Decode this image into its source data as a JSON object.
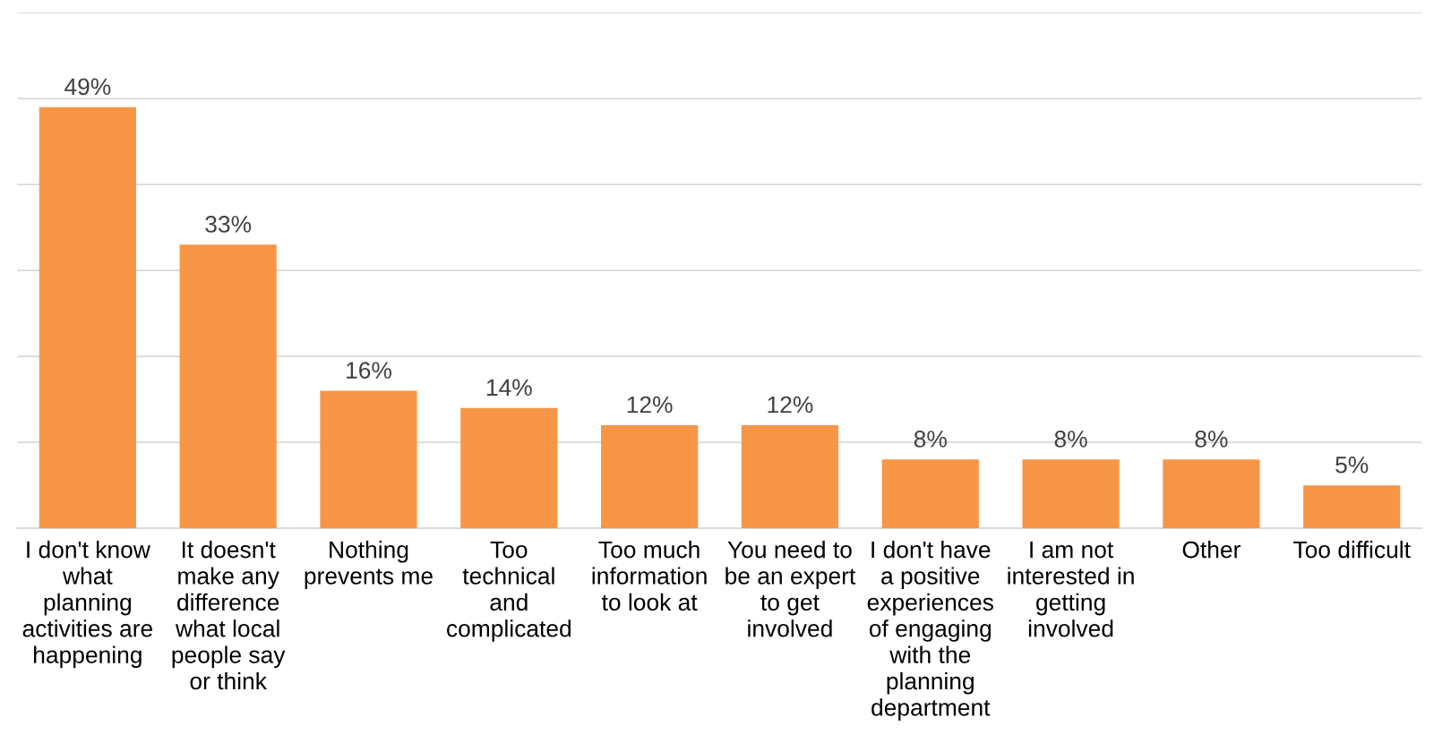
{
  "chart_data": {
    "type": "bar",
    "categories": [
      "I don't know\nwhat\nplanning\nactivities are\nhappening",
      "It doesn't\nmake any\ndifference\nwhat local\npeople say\nor think",
      "Nothing\nprevents me",
      "Too\ntechnical\nand\ncomplicated",
      "Too much\ninformation\nto look at",
      "You need to\nbe an expert\nto get\ninvolved",
      "I don't have\na positive\nexperiences\nof engaging\nwith the\nplanning\ndepartment",
      "I am not\ninterested in\ngetting\ninvolved",
      "Other",
      "Too difficult"
    ],
    "values": [
      49,
      33,
      16,
      14,
      12,
      12,
      8,
      8,
      8,
      5
    ],
    "value_labels": [
      "49%",
      "33%",
      "16%",
      "14%",
      "12%",
      "12%",
      "8%",
      "8%",
      "8%",
      "5%"
    ],
    "color": "#f79646",
    "ylim": [
      0,
      60
    ],
    "yticks": [
      {
        "value": 0,
        "label": null
      },
      {
        "value": 10,
        "label": null
      },
      {
        "value": 20,
        "label": null
      },
      {
        "value": 30,
        "label": null
      },
      {
        "value": 40,
        "label": null
      },
      {
        "value": 50,
        "label": null
      },
      {
        "value": 60,
        "label": null
      }
    ],
    "tick_labels": "x",
    "grid": "y",
    "legend": false
  }
}
